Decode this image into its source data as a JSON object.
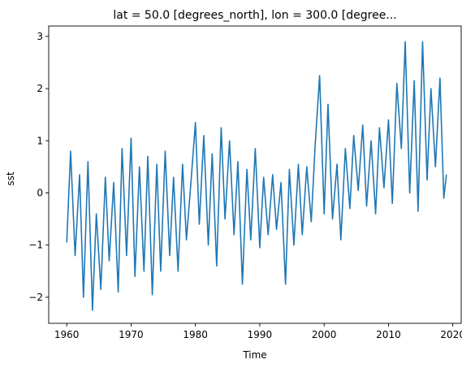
{
  "chart_data": {
    "type": "line",
    "title": "lat = 50.0 [degrees_north], lon = 300.0 [degree...",
    "xlabel": "Time",
    "ylabel": "sst",
    "xlim": [
      1957.2,
      2021.3
    ],
    "ylim": [
      -2.5,
      3.2
    ],
    "x_ticks": [
      1960,
      1970,
      1980,
      1990,
      2000,
      2010,
      2020
    ],
    "y_ticks": [
      -2,
      -1,
      0,
      1,
      2,
      3
    ],
    "grid": false,
    "legend": "none",
    "series": [
      {
        "color": "#1f77b4",
        "x": [
          1960.0,
          1960.6,
          1961.3,
          1962.0,
          1962.6,
          1963.3,
          1964.0,
          1964.6,
          1965.3,
          1966.0,
          1966.6,
          1967.3,
          1968.0,
          1968.6,
          1969.3,
          1970.0,
          1970.6,
          1971.3,
          1972.0,
          1972.6,
          1973.3,
          1974.0,
          1974.6,
          1975.3,
          1976.0,
          1976.6,
          1977.3,
          1978.0,
          1978.6,
          1979.3,
          1980.0,
          1980.6,
          1981.3,
          1982.0,
          1982.6,
          1983.3,
          1984.0,
          1984.6,
          1985.3,
          1986.0,
          1986.6,
          1987.3,
          1988.0,
          1988.6,
          1989.3,
          1990.0,
          1990.6,
          1991.3,
          1992.0,
          1992.6,
          1993.3,
          1994.0,
          1994.6,
          1995.3,
          1996.0,
          1996.6,
          1997.3,
          1998.0,
          1998.6,
          1999.3,
          2000.0,
          2000.6,
          2001.3,
          2002.0,
          2002.6,
          2003.3,
          2004.0,
          2004.6,
          2005.3,
          2006.0,
          2006.6,
          2007.3,
          2008.0,
          2008.6,
          2009.3,
          2010.0,
          2010.6,
          2011.3,
          2012.0,
          2012.6,
          2013.3,
          2014.0,
          2014.6,
          2015.3,
          2016.0,
          2016.6,
          2017.3,
          2018.0,
          2018.6,
          2019.0
        ],
        "values": [
          -0.95,
          0.8,
          -1.2,
          0.35,
          -2.0,
          0.6,
          -2.25,
          -0.4,
          -1.85,
          0.3,
          -1.3,
          0.2,
          -1.9,
          0.85,
          -1.2,
          1.05,
          -1.6,
          0.5,
          -1.5,
          0.7,
          -1.95,
          0.55,
          -1.5,
          0.8,
          -1.2,
          0.3,
          -1.5,
          0.55,
          -0.9,
          0.2,
          1.35,
          -0.6,
          1.1,
          -1.0,
          0.75,
          -1.4,
          1.25,
          -0.5,
          1.0,
          -0.8,
          0.6,
          -1.75,
          0.45,
          -0.9,
          0.85,
          -1.05,
          0.3,
          -0.8,
          0.35,
          -0.7,
          0.2,
          -1.75,
          0.45,
          -1.0,
          0.55,
          -0.8,
          0.5,
          -0.55,
          0.9,
          2.25,
          -0.4,
          1.7,
          -0.5,
          0.55,
          -0.9,
          0.85,
          -0.3,
          1.1,
          0.05,
          1.3,
          -0.25,
          1.0,
          -0.4,
          1.25,
          0.1,
          1.4,
          -0.2,
          2.1,
          0.85,
          2.9,
          0.0,
          2.15,
          -0.35,
          2.9,
          0.25,
          2.0,
          0.5,
          2.2,
          -0.1,
          0.35
        ]
      }
    ]
  }
}
